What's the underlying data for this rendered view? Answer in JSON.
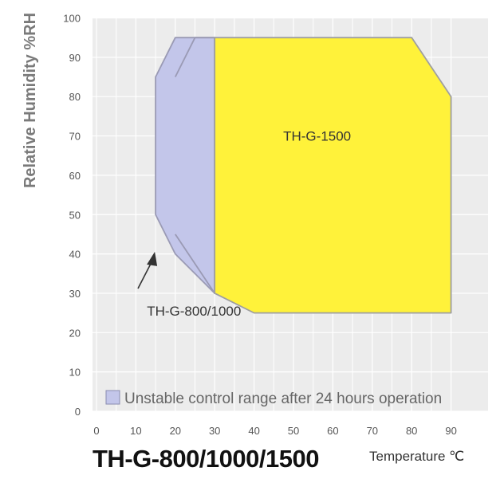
{
  "chart_data": {
    "type": "area",
    "title": "TH-G-800/1000/1500",
    "xlabel": "Temperature ℃",
    "ylabel": "Relative Humidity %RH",
    "xlim": [
      0,
      90
    ],
    "ylim": [
      0,
      100
    ],
    "x_ticks": [
      "0",
      "10",
      "20",
      "30",
      "40",
      "50",
      "60",
      "70",
      "80",
      "90"
    ],
    "y_ticks": [
      "0",
      "10",
      "20",
      "30",
      "40",
      "50",
      "60",
      "70",
      "80",
      "90",
      "100"
    ],
    "grid": true,
    "regions": [
      {
        "name": "TH-G-800/1000",
        "color": "#c3c6ea",
        "outer_boundary": [
          [
            15,
            85
          ],
          [
            20,
            95
          ],
          [
            30,
            95
          ],
          [
            30,
            30
          ],
          [
            20,
            40
          ],
          [
            15,
            50
          ]
        ],
        "inner_boundary": [
          [
            20,
            85
          ],
          [
            25,
            95
          ],
          [
            30,
            95
          ],
          [
            30,
            30
          ],
          [
            20,
            45
          ]
        ]
      },
      {
        "name": "TH-G-1500",
        "color": "#fff23a",
        "boundary": [
          [
            30,
            95
          ],
          [
            80,
            95
          ],
          [
            90,
            80
          ],
          [
            90,
            25
          ],
          [
            40,
            25
          ],
          [
            30,
            30
          ]
        ]
      }
    ],
    "annotations": [
      {
        "text": "TH-G-1500",
        "x": 56,
        "y": 70
      },
      {
        "text": "TH-G-800/1000",
        "x": 12,
        "y": 27,
        "arrow_to": [
          15,
          45
        ]
      }
    ],
    "legend": {
      "text": "Unstable control range after 24 hours operation",
      "color": "#c3c6ea",
      "position": "bottom-left"
    }
  }
}
